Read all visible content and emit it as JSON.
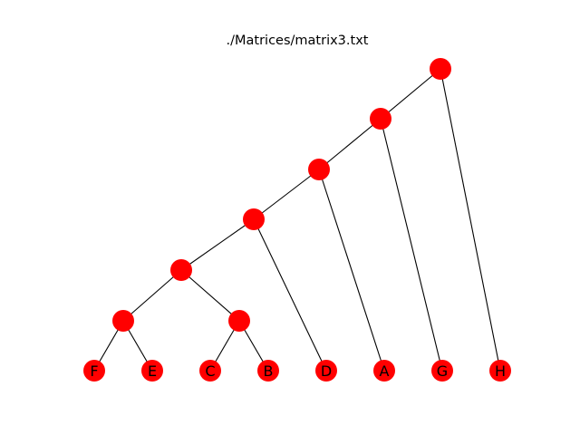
{
  "title": "./Matrices/matrix3.txt",
  "colors": {
    "node": "#ff0000",
    "edge": "#000000",
    "label": "#000000",
    "background": "#ffffff"
  },
  "tree": {
    "leaves": [
      "F",
      "E",
      "C",
      "B",
      "D",
      "A",
      "G",
      "H"
    ],
    "internal_nodes": [
      {
        "id": "n1",
        "children": [
          "F",
          "E"
        ]
      },
      {
        "id": "n2",
        "children": [
          "C",
          "B"
        ]
      },
      {
        "id": "n3",
        "children": [
          "n1",
          "n2"
        ]
      },
      {
        "id": "n4",
        "children": [
          "n3",
          "D"
        ]
      },
      {
        "id": "n5",
        "children": [
          "n4",
          "A"
        ]
      },
      {
        "id": "n6",
        "children": [
          "n5",
          "G"
        ]
      },
      {
        "id": "n7",
        "children": [
          "n6",
          "H"
        ]
      }
    ],
    "root": "n7"
  }
}
